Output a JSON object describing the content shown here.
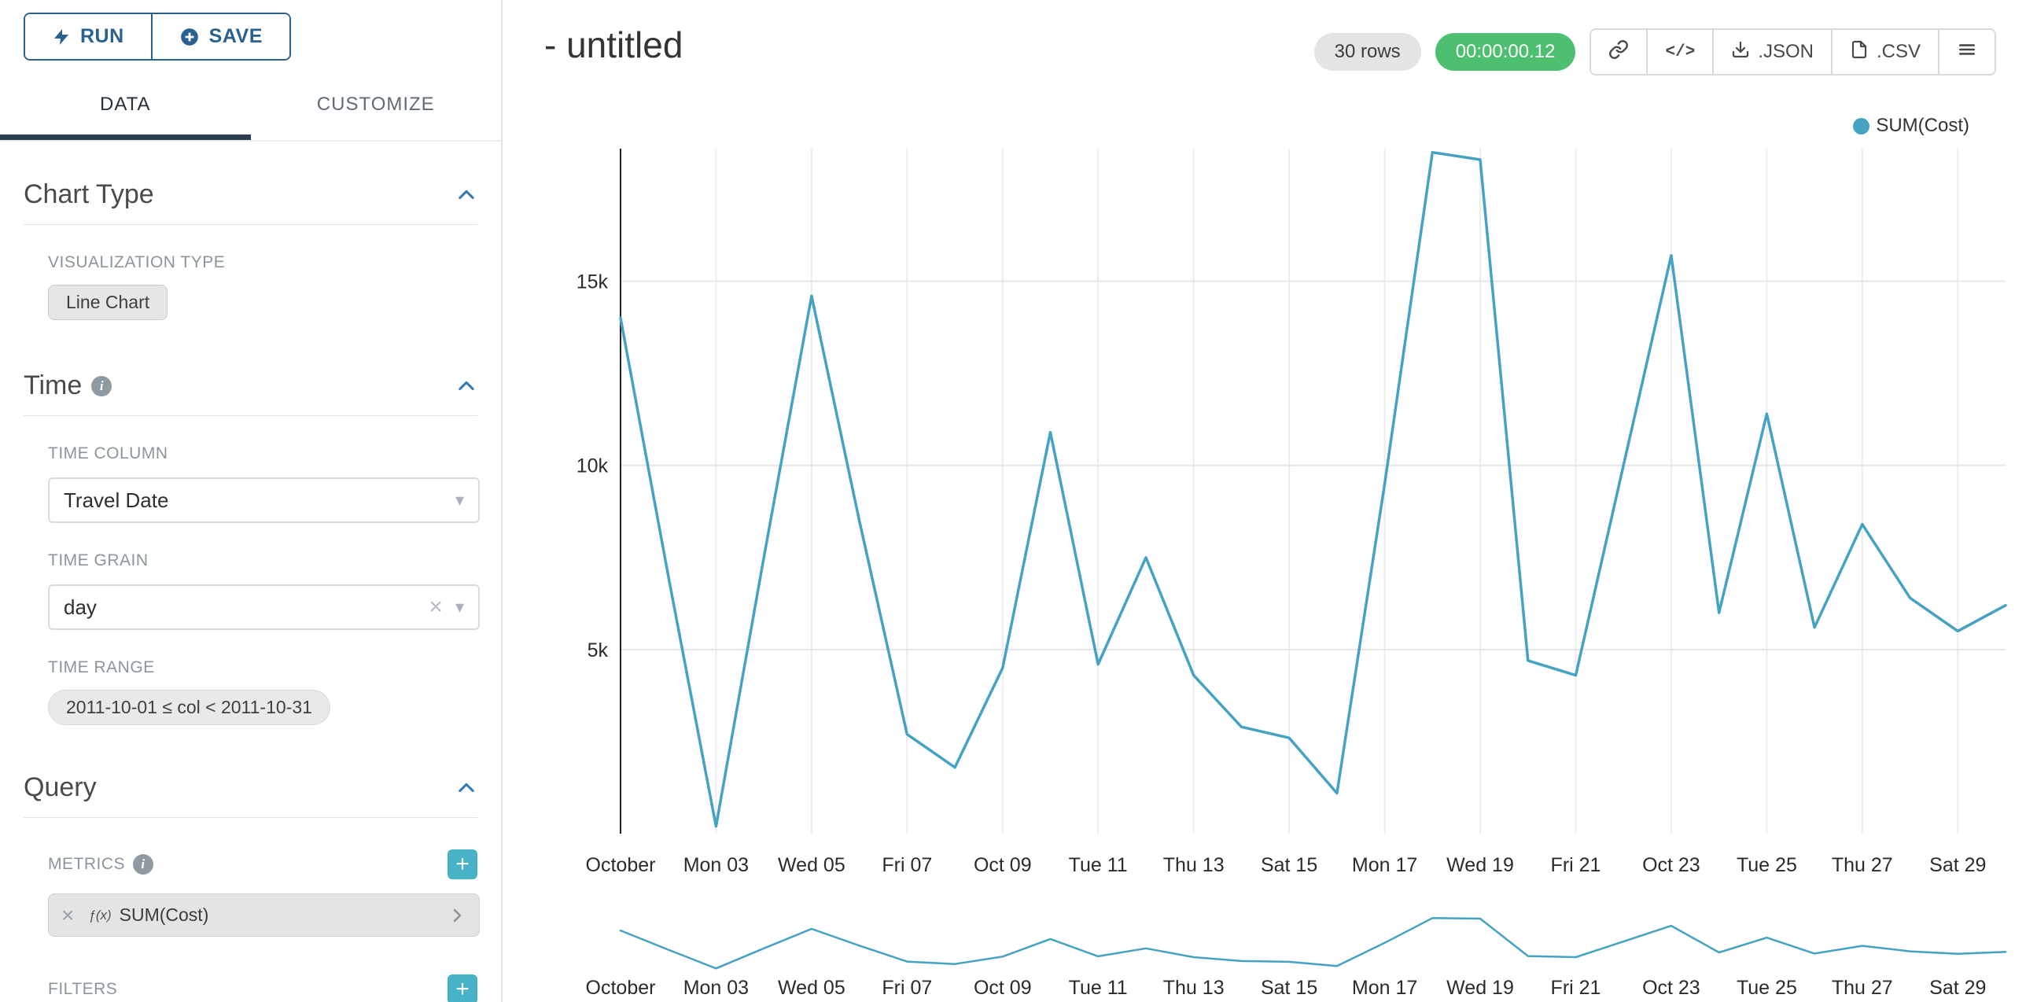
{
  "colors": {
    "line": "#45a2c3",
    "accent_navy": "#29618f",
    "tab_underline": "#2d3e50",
    "teal_add_button": "#48b2c6",
    "green_badge": "#4cc06f",
    "grid": "#ececec"
  },
  "toolbar": {
    "run_label": "RUN",
    "save_label": "SAVE"
  },
  "tabs": [
    {
      "label": "DATA",
      "active": true
    },
    {
      "label": "CUSTOMIZE",
      "active": false
    }
  ],
  "sections": {
    "chart_type": {
      "title": "Chart Type",
      "viz_type_label": "VISUALIZATION TYPE",
      "viz_type_value": "Line Chart"
    },
    "time": {
      "title": "Time",
      "time_column_label": "TIME COLUMN",
      "time_column_value": "Travel Date",
      "time_grain_label": "TIME GRAIN",
      "time_grain_value": "day",
      "time_range_label": "TIME RANGE",
      "time_range_value": "2011-10-01 ≤ col < 2011-10-31"
    },
    "query": {
      "title": "Query",
      "metrics_label": "METRICS",
      "metric_prefix": "ƒ(x)",
      "metric_value": "SUM(Cost)",
      "filters_label": "FILTERS"
    }
  },
  "header": {
    "title": "- untitled",
    "rows_badge": "30 rows",
    "timer_badge": "00:00:00.12",
    "json_label": ".JSON",
    "csv_label": ".CSV"
  },
  "chart_data": {
    "type": "line",
    "title": "",
    "x": [
      "2011-10-01",
      "2011-10-02",
      "2011-10-03",
      "2011-10-04",
      "2011-10-05",
      "2011-10-06",
      "2011-10-07",
      "2011-10-08",
      "2011-10-09",
      "2011-10-10",
      "2011-10-11",
      "2011-10-12",
      "2011-10-13",
      "2011-10-14",
      "2011-10-15",
      "2011-10-16",
      "2011-10-17",
      "2011-10-18",
      "2011-10-19",
      "2011-10-20",
      "2011-10-21",
      "2011-10-22",
      "2011-10-23",
      "2011-10-24",
      "2011-10-25",
      "2011-10-26",
      "2011-10-27",
      "2011-10-28",
      "2011-10-29",
      "2011-10-30"
    ],
    "series": [
      {
        "name": "SUM(Cost)",
        "color": "#45a2c3",
        "values": [
          14000,
          7000,
          200,
          7500,
          14600,
          8500,
          2700,
          1800,
          4500,
          10900,
          4600,
          7500,
          4300,
          2900,
          2600,
          1100,
          9500,
          18500,
          18300,
          4700,
          4300,
          10000,
          15700,
          6000,
          11400,
          5600,
          8400,
          6400,
          5500,
          6200
        ]
      }
    ],
    "x_tick_labels": [
      "October",
      "Mon 03",
      "Wed 05",
      "Fri 07",
      "Oct 09",
      "Tue 11",
      "Thu 13",
      "Sat 15",
      "Mon 17",
      "Wed 19",
      "Fri 21",
      "Oct 23",
      "Tue 25",
      "Thu 27",
      "Sat 29"
    ],
    "y_ticks": [
      5000,
      10000,
      15000
    ],
    "y_tick_labels": [
      "5k",
      "10k",
      "15k"
    ],
    "ylim": [
      0,
      18600
    ],
    "xlabel": "",
    "ylabel": "",
    "grid": true,
    "legend_position": "top-right",
    "has_mini_brush_chart": true
  }
}
